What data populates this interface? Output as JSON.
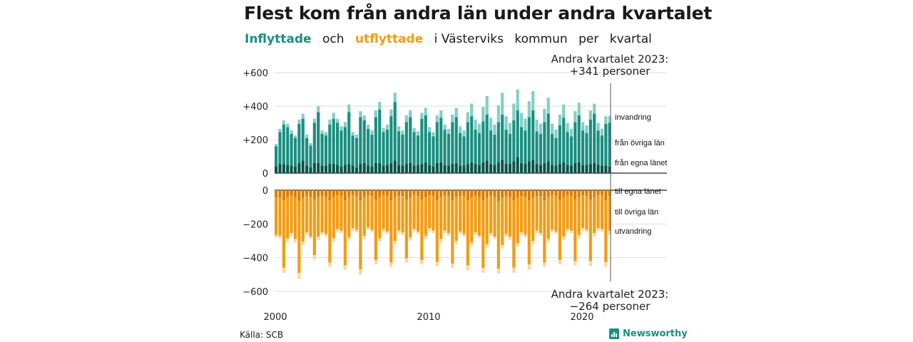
{
  "title": "Flest kom från andra län under andra kvartalet",
  "subtitle": {
    "inflow": "Inflyttade",
    "and": "och",
    "outflow": "utflyttade",
    "rest": [
      "i Västerviks",
      "kommun",
      "per",
      "kvartal"
    ]
  },
  "annotation_top": {
    "line1": "Andra kvartalet 2023:",
    "line2": "+341 personer"
  },
  "annotation_bottom": {
    "line1": "Andra kvartalet 2023:",
    "line2": "−264 personer"
  },
  "source": "Källa: SCB",
  "logo": "Newsworthy",
  "colors": {
    "own_county": "#0b5448",
    "other_counties": "#1a8f80",
    "immigration": "#84cfc4",
    "out_own": "#d97f06",
    "out_other": "#f39c12",
    "emigration": "#f8d9a0",
    "grid": "#dddddd",
    "axis": "#222222"
  },
  "chart_data": {
    "type": "bar",
    "layout": "stacked, diverging (positive = inflyttade, negative = utflyttade)",
    "x_unit": "quarter",
    "x_start": "2000 Q1",
    "x_end": "2023 Q2",
    "x_tick_labels": [
      "2000",
      "2010",
      "2020"
    ],
    "y_ticks_top": [
      "+600",
      "+400",
      "+200",
      "0"
    ],
    "y_ticks_bottom": [
      "0",
      "−200",
      "−400",
      "−600"
    ],
    "ylim": [
      -600,
      600
    ],
    "grid": true,
    "series_labels_in": [
      "invandring",
      "från övriga län",
      "från egna länet"
    ],
    "series_labels_out": [
      "till egna länet",
      "till övriga län",
      "utvandring"
    ],
    "inflow_total": [
      175,
      265,
      315,
      295,
      255,
      225,
      320,
      355,
      230,
      180,
      325,
      400,
      255,
      245,
      320,
      360,
      325,
      280,
      305,
      410,
      245,
      230,
      370,
      345,
      290,
      255,
      375,
      425,
      270,
      290,
      380,
      480,
      280,
      255,
      345,
      375,
      270,
      250,
      360,
      390,
      275,
      245,
      345,
      375,
      290,
      265,
      350,
      390,
      280,
      255,
      365,
      415,
      320,
      295,
      395,
      460,
      330,
      290,
      405,
      480,
      340,
      300,
      415,
      500,
      360,
      325,
      430,
      490,
      320,
      295,
      385,
      450,
      295,
      260,
      350,
      410,
      300,
      265,
      370,
      420,
      305,
      285,
      375,
      415,
      300,
      265,
      340,
      341
    ],
    "inflow_own_county": [
      40,
      55,
      55,
      50,
      45,
      40,
      60,
      75,
      45,
      35,
      60,
      60,
      45,
      45,
      55,
      55,
      50,
      40,
      50,
      55,
      45,
      35,
      55,
      60,
      45,
      40,
      60,
      60,
      45,
      50,
      60,
      75,
      50,
      45,
      55,
      60,
      45,
      50,
      55,
      65,
      50,
      40,
      60,
      65,
      50,
      45,
      55,
      60,
      45,
      45,
      55,
      65,
      55,
      50,
      65,
      75,
      55,
      50,
      65,
      80,
      55,
      55,
      70,
      95,
      60,
      55,
      70,
      80,
      55,
      50,
      60,
      70,
      50,
      45,
      55,
      65,
      50,
      45,
      60,
      65,
      50,
      50,
      55,
      60,
      50,
      45,
      45,
      40
    ],
    "inflow_immigration": [
      15,
      20,
      25,
      20,
      20,
      15,
      25,
      30,
      20,
      15,
      25,
      35,
      20,
      20,
      30,
      35,
      25,
      25,
      30,
      45,
      20,
      20,
      35,
      30,
      25,
      25,
      40,
      45,
      25,
      30,
      40,
      55,
      30,
      25,
      40,
      40,
      25,
      25,
      35,
      45,
      30,
      25,
      40,
      45,
      30,
      30,
      45,
      55,
      40,
      35,
      60,
      75,
      60,
      55,
      85,
      110,
      75,
      60,
      100,
      130,
      80,
      65,
      100,
      125,
      85,
      70,
      95,
      115,
      70,
      60,
      80,
      95,
      60,
      50,
      65,
      80,
      55,
      45,
      65,
      75,
      50,
      45,
      55,
      60,
      45,
      40,
      45,
      40
    ],
    "outflow_total": [
      280,
      285,
      490,
      305,
      270,
      310,
      525,
      325,
      265,
      290,
      410,
      295,
      265,
      275,
      455,
      305,
      245,
      255,
      470,
      300,
      240,
      250,
      500,
      290,
      235,
      250,
      440,
      305,
      245,
      260,
      455,
      320,
      255,
      265,
      430,
      300,
      245,
      260,
      440,
      290,
      240,
      255,
      450,
      310,
      255,
      270,
      460,
      320,
      260,
      275,
      475,
      330,
      265,
      285,
      490,
      340,
      270,
      290,
      495,
      345,
      275,
      295,
      490,
      335,
      265,
      280,
      470,
      320,
      255,
      270,
      455,
      310,
      250,
      260,
      440,
      295,
      245,
      255,
      445,
      285,
      240,
      250,
      450,
      275,
      240,
      245,
      455,
      264
    ],
    "outflow_own_county": [
      40,
      45,
      60,
      40,
      35,
      45,
      65,
      45,
      35,
      40,
      55,
      40,
      35,
      40,
      60,
      40,
      30,
      35,
      60,
      40,
      30,
      35,
      60,
      40,
      30,
      35,
      55,
      40,
      30,
      35,
      60,
      40,
      35,
      35,
      55,
      40,
      30,
      35,
      55,
      40,
      30,
      35,
      55,
      40,
      35,
      35,
      60,
      40,
      35,
      35,
      60,
      45,
      35,
      40,
      60,
      45,
      35,
      40,
      65,
      45,
      35,
      40,
      60,
      45,
      35,
      40,
      60,
      45,
      35,
      35,
      60,
      40,
      30,
      35,
      55,
      40,
      30,
      35,
      55,
      40,
      30,
      35,
      55,
      40,
      30,
      30,
      60,
      35
    ],
    "outflow_emigration": [
      15,
      15,
      30,
      20,
      15,
      20,
      35,
      20,
      15,
      15,
      25,
      20,
      15,
      15,
      25,
      20,
      15,
      15,
      25,
      20,
      15,
      15,
      30,
      20,
      15,
      15,
      25,
      20,
      15,
      15,
      25,
      20,
      15,
      15,
      25,
      20,
      15,
      15,
      25,
      20,
      15,
      15,
      25,
      20,
      15,
      15,
      25,
      20,
      15,
      15,
      30,
      20,
      15,
      15,
      30,
      20,
      15,
      15,
      30,
      20,
      15,
      20,
      30,
      20,
      15,
      15,
      30,
      20,
      15,
      15,
      25,
      20,
      15,
      15,
      25,
      20,
      15,
      15,
      25,
      20,
      15,
      15,
      30,
      20,
      15,
      15,
      30,
      25
    ]
  }
}
